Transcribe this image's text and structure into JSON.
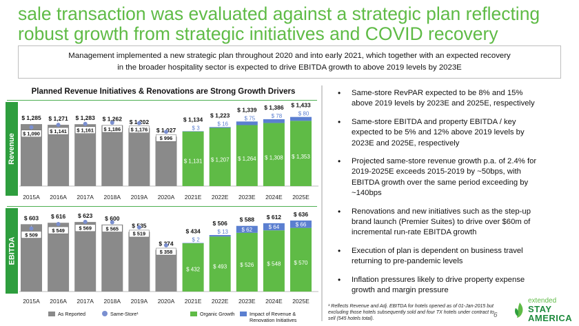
{
  "header": {
    "title": "sale transaction was evaluated against a strategic plan reflecting robust growth from strategic initiatives and COVID recovery"
  },
  "summary": {
    "line1": "Management implemented a new strategic plan throughout 2020 and into early 2021, which together with an expected recovery",
    "line2": "in the broader hospitality sector is expected to drive EBITDA growth to above 2019 levels by 2023E"
  },
  "chart_title": "Planned Revenue Initiatives & Renovations are Strong Growth Drivers",
  "colors": {
    "title_green": "#5fbb46",
    "as_reported": "#8a8a8a",
    "same_store": "#7a8fd0",
    "organic_growth": "#5fbb46",
    "impact": "#5b7fd0",
    "axis_label_bg": "#2e9e3e",
    "rule_green": "#4caf50"
  },
  "chart_data": [
    {
      "type": "bar",
      "title": "Revenue",
      "categories": [
        "2015A",
        "2016A",
        "2017A",
        "2018A",
        "2019A",
        "2020A",
        "2021E",
        "2022E",
        "2023E",
        "2024E",
        "2025E"
      ],
      "series": [
        {
          "name": "As Reported",
          "values": [
            1285,
            1271,
            1283,
            1262,
            1202,
            1027,
            null,
            null,
            null,
            null,
            null
          ]
        },
        {
          "name": "Same-Store",
          "values": [
            1090,
            1141,
            1161,
            1186,
            1176,
            996,
            null,
            null,
            null,
            null,
            null
          ]
        },
        {
          "name": "Organic Growth",
          "values": [
            null,
            null,
            null,
            null,
            null,
            null,
            1131,
            1207,
            1264,
            1308,
            1353
          ]
        },
        {
          "name": "Impact of Revenue & Renovation Initiatives",
          "values": [
            null,
            null,
            null,
            null,
            null,
            null,
            3,
            16,
            75,
            78,
            80
          ]
        }
      ],
      "totals": [
        null,
        null,
        null,
        null,
        null,
        null,
        1134,
        1223,
        1339,
        1386,
        1433
      ],
      "labels": {
        "as_reported": [
          "$ 1,285",
          "$ 1,271",
          "$ 1,283",
          "$ 1,262",
          "$ 1,202",
          "$ 1,027"
        ],
        "same_store": [
          "$ 1,090",
          "$ 1,141",
          "$ 1,161",
          "$ 1,186",
          "$ 1,176",
          "$ 996"
        ],
        "organic": [
          "$ 1,131",
          "$ 1,207",
          "$ 1,264",
          "$ 1,308",
          "$ 1,353"
        ],
        "impact": [
          "$ 3",
          "$ 16",
          "$ 75",
          "$ 78",
          "$ 80"
        ],
        "totals": [
          "$ 1,134",
          "$ 1,223",
          "$ 1,339",
          "$ 1,386",
          "$ 1,433"
        ]
      },
      "ylim": [
        0,
        1450
      ]
    },
    {
      "type": "bar",
      "title": "EBITDA",
      "categories": [
        "2015A",
        "2016A",
        "2017A",
        "2018A",
        "2019A",
        "2020A",
        "2021E",
        "2022E",
        "2023E",
        "2024E",
        "2025E"
      ],
      "series": [
        {
          "name": "As Reported",
          "values": [
            603,
            616,
            623,
            600,
            535,
            374,
            null,
            null,
            null,
            null,
            null
          ]
        },
        {
          "name": "Same-Store",
          "values": [
            509,
            549,
            569,
            565,
            519,
            358,
            null,
            null,
            null,
            null,
            null
          ]
        },
        {
          "name": "Organic Growth",
          "values": [
            null,
            null,
            null,
            null,
            null,
            null,
            432,
            493,
            526,
            548,
            570
          ]
        },
        {
          "name": "Impact of Revenue & Renovation Initiatives",
          "values": [
            null,
            null,
            null,
            null,
            null,
            null,
            2,
            13,
            62,
            64,
            66
          ]
        }
      ],
      "totals": [
        null,
        null,
        null,
        null,
        null,
        null,
        434,
        506,
        588,
        612,
        636
      ],
      "labels": {
        "as_reported": [
          "$ 603",
          "$ 616",
          "$ 623",
          "$ 600",
          "$ 535",
          "$ 374"
        ],
        "same_store": [
          "$ 509",
          "$ 549",
          "$ 569",
          "$ 565",
          "$ 519",
          "$ 358"
        ],
        "organic": [
          "$ 432",
          "$ 493",
          "$ 526",
          "$ 548",
          "$ 570"
        ],
        "impact": [
          "$ 2",
          "$ 13",
          "$ 62",
          "$ 64",
          "$ 66"
        ],
        "totals": [
          "$ 434",
          "$ 506",
          "$ 588",
          "$ 612",
          "$ 636"
        ]
      },
      "ylim": [
        0,
        640
      ]
    }
  ],
  "axis_labels": {
    "revenue": "Revenue",
    "ebitda": "EBITDA"
  },
  "legend": {
    "as_reported": "As Reported",
    "same_store": "Same-Store¹",
    "organic": "Organic Growth",
    "impact": "Impact of Revenue & Renovation Initiatives"
  },
  "bullets": [
    "Same-store RevPAR expected to be 8% and 15% above 2019 levels by 2023E and 2025E, respectively",
    "Same-store EBITDA and property EBITDA / key expected to be 5% and 12% above 2019 levels by 2023E and 2025E, respectively",
    "Projected same-store revenue growth p.a. of 2.4% for 2019-2025E exceeds 2015-2019 by ~50bps, with EBITDA growth over the same period exceeding by ~140bps",
    "Renovations and new initiatives such as the step-up brand launch (Premier Suites) to drive over $60m of incremental run-rate EBITDA growth",
    "Execution of plan is dependent on business travel returning to pre-pandemic levels",
    "Inflation pressures likely to drive property expense growth and margin pressure"
  ],
  "footnote": "¹ Reflects Revenue and Adj. EBITDA for hotels opened as of 01-Jan-2015 but excluding those hotels subsequently sold and four TX hotels under contract to sell (545 hotels total).",
  "page_number": "6",
  "logo": {
    "line0": "extended",
    "line1": "STAY",
    "line2": "AMERICA"
  }
}
